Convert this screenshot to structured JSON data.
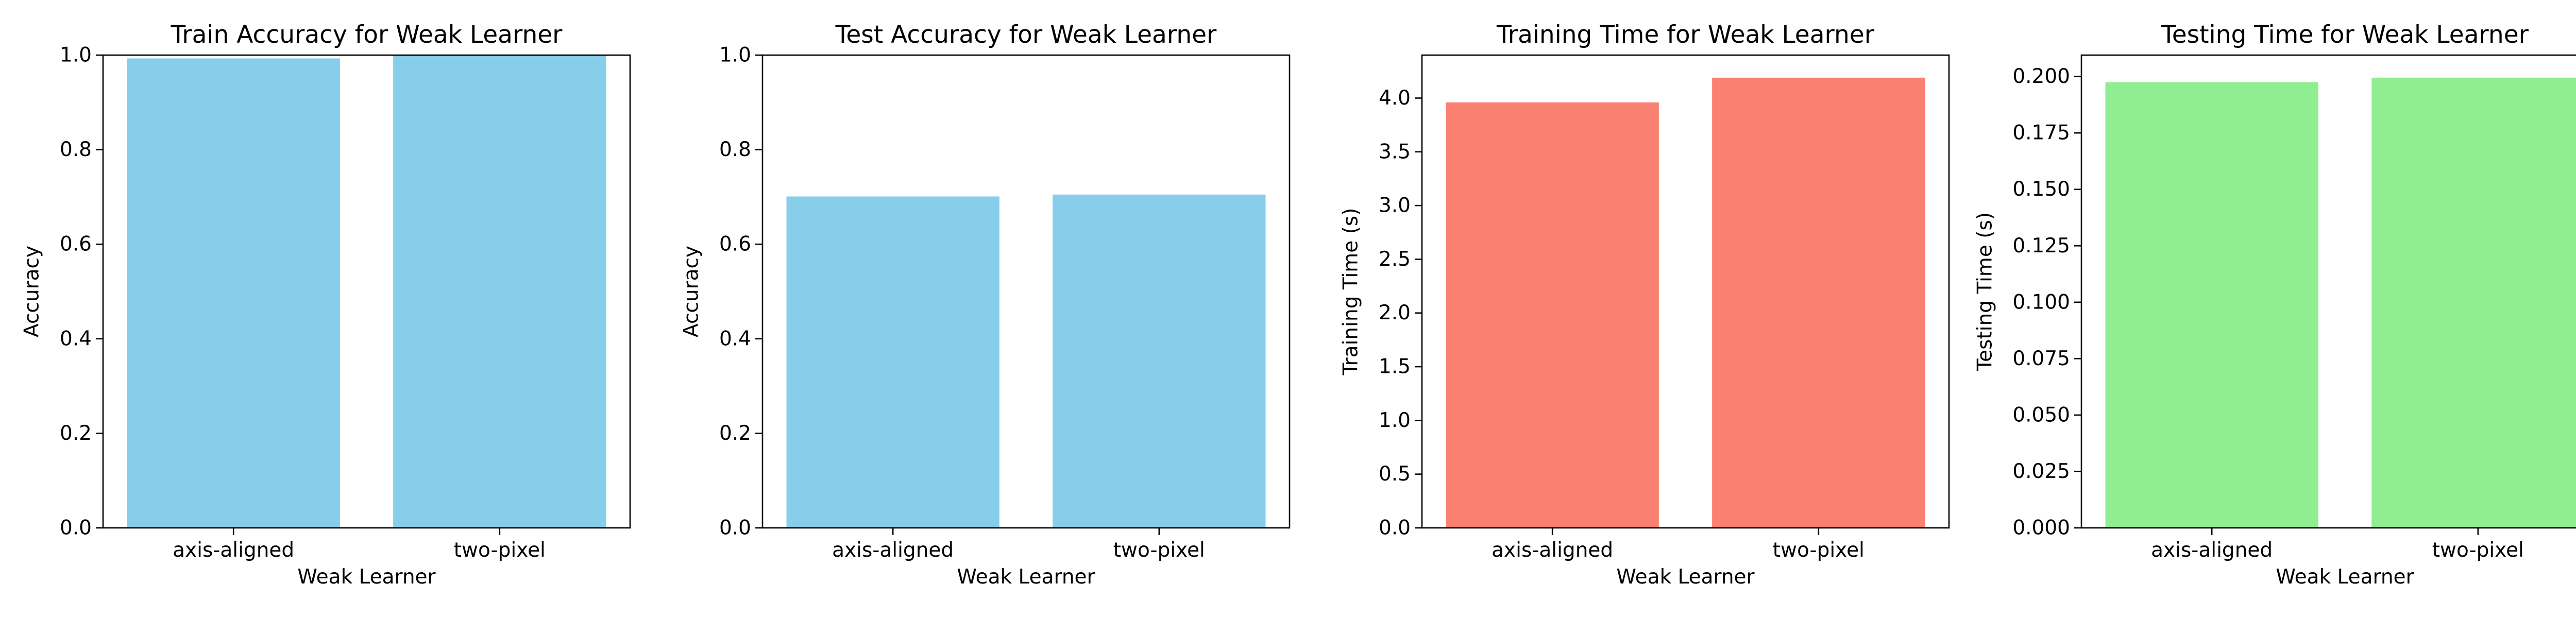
{
  "chart_data": [
    {
      "type": "bar",
      "title": "Train Accuracy for Weak Learner",
      "xlabel": "Weak Learner",
      "ylabel": "Accuracy",
      "categories": [
        "axis-aligned",
        "two-pixel"
      ],
      "values": [
        0.993,
        1.0
      ],
      "ylim": [
        0,
        1.0
      ],
      "yticks": [
        "0.0",
        "0.2",
        "0.4",
        "0.6",
        "0.8",
        "1.0"
      ],
      "color": "#87ceeb",
      "grid": false
    },
    {
      "type": "bar",
      "title": "Test Accuracy for Weak Learner",
      "xlabel": "Weak Learner",
      "ylabel": "Accuracy",
      "categories": [
        "axis-aligned",
        "two-pixel"
      ],
      "values": [
        0.701,
        0.705
      ],
      "ylim": [
        0,
        1.0
      ],
      "yticks": [
        "0.0",
        "0.2",
        "0.4",
        "0.6",
        "0.8",
        "1.0"
      ],
      "color": "#87ceeb",
      "grid": false
    },
    {
      "type": "bar",
      "title": "Training Time for Weak Learner",
      "xlabel": "Weak Learner",
      "ylabel": "Training Time (s)",
      "categories": [
        "axis-aligned",
        "two-pixel"
      ],
      "values": [
        3.96,
        4.19
      ],
      "ylim": [
        0,
        4.4
      ],
      "yticks": [
        "0.0",
        "0.5",
        "1.0",
        "1.5",
        "2.0",
        "2.5",
        "3.0",
        "3.5",
        "4.0"
      ],
      "color": "#fa8072",
      "grid": false
    },
    {
      "type": "bar",
      "title": "Testing Time for Weak Learner",
      "xlabel": "Weak Learner",
      "ylabel": "Testing Time (s)",
      "categories": [
        "axis-aligned",
        "two-pixel"
      ],
      "values": [
        0.1975,
        0.1995
      ],
      "ylim": [
        0,
        0.2095
      ],
      "yticks": [
        "0.000",
        "0.025",
        "0.050",
        "0.075",
        "0.100",
        "0.125",
        "0.150",
        "0.175",
        "0.200"
      ],
      "color": "#90ee90",
      "grid": false
    }
  ]
}
